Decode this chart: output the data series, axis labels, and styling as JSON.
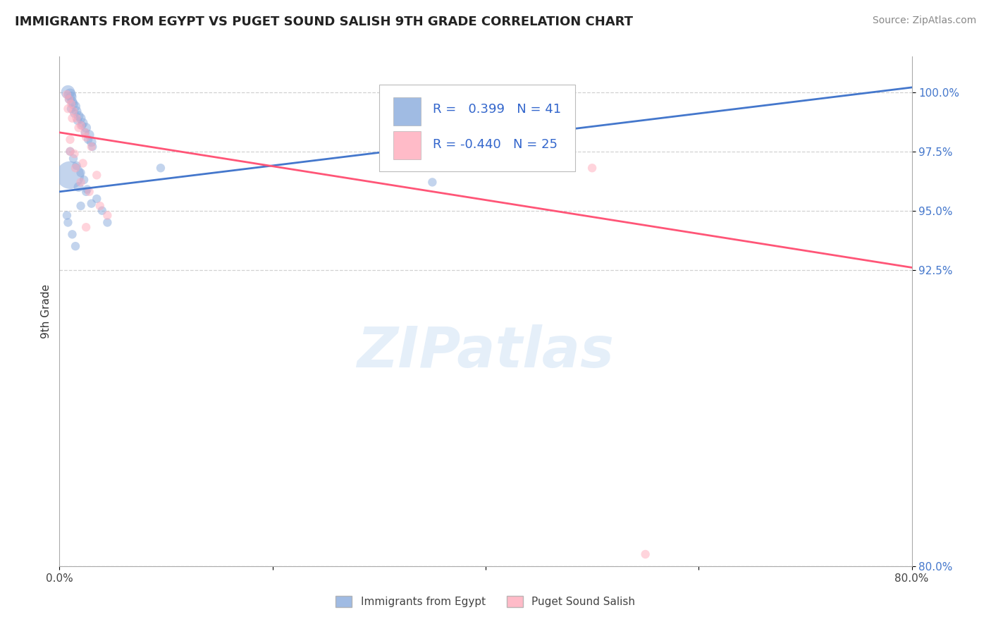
{
  "title": "IMMIGRANTS FROM EGYPT VS PUGET SOUND SALISH 9TH GRADE CORRELATION CHART",
  "source": "Source: ZipAtlas.com",
  "ylabel": "9th Grade",
  "xlim": [
    0.0,
    80.0
  ],
  "ylim": [
    80.0,
    101.5
  ],
  "y_ticks": [
    80.0,
    92.5,
    95.0,
    97.5,
    100.0
  ],
  "y_tick_labels": [
    "80.0%",
    "92.5%",
    "95.0%",
    "97.5%",
    "100.0%"
  ],
  "grid_color": "#cccccc",
  "background_color": "#ffffff",
  "blue_color": "#88aadd",
  "pink_color": "#ffaabb",
  "blue_line_color": "#4477cc",
  "pink_line_color": "#ff5577",
  "watermark": "ZIPatlas",
  "legend_r_blue": "0.399",
  "legend_n_blue": "41",
  "legend_r_pink": "-0.440",
  "legend_n_pink": "25",
  "blue_line": [
    [
      0,
      80
    ],
    [
      95.8,
      100.2
    ]
  ],
  "pink_line": [
    [
      0,
      80
    ],
    [
      98.3,
      92.6
    ]
  ],
  "blue_points_x": [
    0.8,
    1.0,
    1.1,
    1.2,
    1.3,
    1.5,
    1.6,
    1.8,
    2.0,
    2.2,
    2.5,
    2.8,
    3.0,
    0.9,
    1.1,
    1.4,
    1.7,
    2.1,
    2.4,
    2.7,
    3.1,
    1.0,
    1.3,
    1.6,
    2.0,
    2.3,
    2.6,
    3.5,
    4.0,
    0.7,
    0.8,
    1.2,
    1.5,
    2.0,
    2.5,
    1.0,
    1.8,
    3.0,
    4.5,
    9.5,
    35.0
  ],
  "blue_points_y": [
    100.0,
    99.9,
    99.8,
    99.6,
    99.5,
    99.4,
    99.2,
    99.0,
    98.9,
    98.7,
    98.5,
    98.2,
    97.9,
    99.7,
    99.3,
    99.1,
    98.8,
    98.6,
    98.3,
    98.0,
    97.7,
    97.5,
    97.2,
    96.9,
    96.6,
    96.3,
    95.9,
    95.5,
    95.0,
    94.8,
    94.5,
    94.0,
    93.5,
    95.2,
    95.8,
    96.5,
    96.0,
    95.3,
    94.5,
    96.8,
    96.2
  ],
  "blue_sizes": [
    200,
    150,
    120,
    100,
    100,
    100,
    100,
    100,
    100,
    100,
    100,
    100,
    100,
    80,
    80,
    80,
    80,
    80,
    80,
    80,
    80,
    80,
    80,
    80,
    80,
    80,
    80,
    80,
    80,
    80,
    80,
    80,
    80,
    80,
    80,
    800,
    100,
    80,
    80,
    80,
    80
  ],
  "pink_points_x": [
    0.7,
    0.9,
    1.1,
    1.3,
    1.6,
    2.0,
    2.4,
    0.8,
    1.2,
    1.8,
    2.5,
    3.0,
    1.4,
    2.2,
    3.5,
    1.0,
    2.0,
    2.8,
    1.5,
    3.8,
    4.5,
    1.0,
    2.5,
    50.0,
    55.0
  ],
  "pink_points_y": [
    99.9,
    99.7,
    99.5,
    99.2,
    98.9,
    98.6,
    98.3,
    99.3,
    98.9,
    98.5,
    98.1,
    97.7,
    97.4,
    97.0,
    96.5,
    98.0,
    96.2,
    95.8,
    96.8,
    95.2,
    94.8,
    97.5,
    94.3,
    96.8,
    80.5
  ],
  "pink_sizes": [
    80,
    80,
    80,
    80,
    80,
    80,
    80,
    80,
    80,
    80,
    80,
    80,
    80,
    80,
    80,
    80,
    80,
    80,
    80,
    80,
    80,
    80,
    80,
    80,
    80
  ]
}
